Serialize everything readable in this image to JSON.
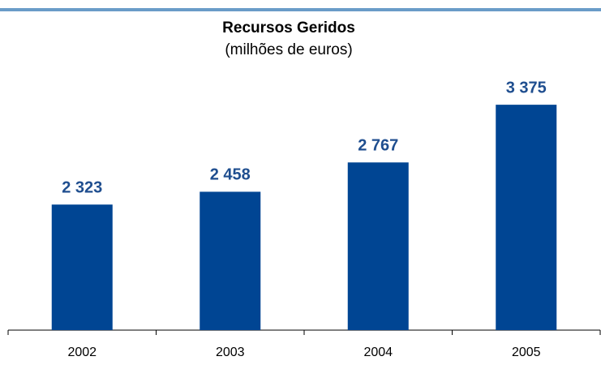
{
  "chart_data": {
    "type": "bar",
    "title": "Recursos Geridos",
    "subtitle": "(milhões de euros)",
    "categories": [
      "2002",
      "2003",
      "2004",
      "2005"
    ],
    "values": [
      2323,
      2458,
      2767,
      3375
    ],
    "value_labels": [
      "2 323",
      "2 458",
      "2 767",
      "3 375"
    ],
    "color": "#004593",
    "ylim": [
      1000,
      4000
    ],
    "grid": false
  }
}
